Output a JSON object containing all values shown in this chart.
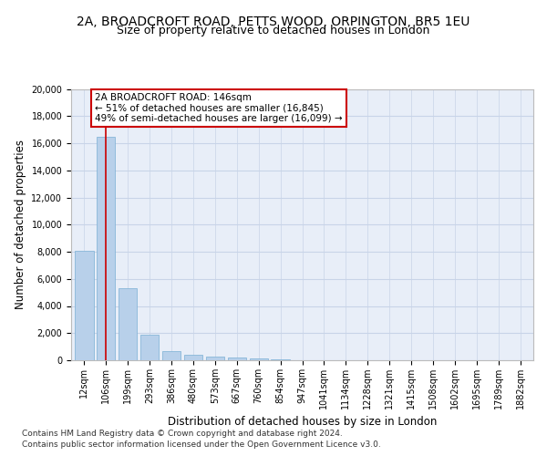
{
  "title_line1": "2A, BROADCROFT ROAD, PETTS WOOD, ORPINGTON, BR5 1EU",
  "title_line2": "Size of property relative to detached houses in London",
  "xlabel": "Distribution of detached houses by size in London",
  "ylabel": "Number of detached properties",
  "categories": [
    "12sqm",
    "106sqm",
    "199sqm",
    "293sqm",
    "386sqm",
    "480sqm",
    "573sqm",
    "667sqm",
    "760sqm",
    "854sqm",
    "947sqm",
    "1041sqm",
    "1134sqm",
    "1228sqm",
    "1321sqm",
    "1415sqm",
    "1508sqm",
    "1602sqm",
    "1695sqm",
    "1789sqm",
    "1882sqm"
  ],
  "values": [
    8100,
    16500,
    5300,
    1850,
    680,
    370,
    280,
    195,
    160,
    80,
    0,
    0,
    0,
    0,
    0,
    0,
    0,
    0,
    0,
    0,
    0
  ],
  "bar_color": "#b8d0ea",
  "bar_edge_color": "#7aafd4",
  "vline_x": 1,
  "vline_color": "#cc0000",
  "annotation_text": "2A BROADCROFT ROAD: 146sqm\n← 51% of detached houses are smaller (16,845)\n49% of semi-detached houses are larger (16,099) →",
  "annotation_box_facecolor": "#ffffff",
  "annotation_box_edgecolor": "#cc0000",
  "ylim": [
    0,
    20000
  ],
  "yticks": [
    0,
    2000,
    4000,
    6000,
    8000,
    10000,
    12000,
    14000,
    16000,
    18000,
    20000
  ],
  "grid_color": "#c8d4e8",
  "background_color": "#e8eef8",
  "footer_line1": "Contains HM Land Registry data © Crown copyright and database right 2024.",
  "footer_line2": "Contains public sector information licensed under the Open Government Licence v3.0.",
  "title_fontsize": 10,
  "subtitle_fontsize": 9,
  "axis_label_fontsize": 8.5,
  "tick_fontsize": 7,
  "annotation_fontsize": 7.5,
  "footer_fontsize": 6.5
}
